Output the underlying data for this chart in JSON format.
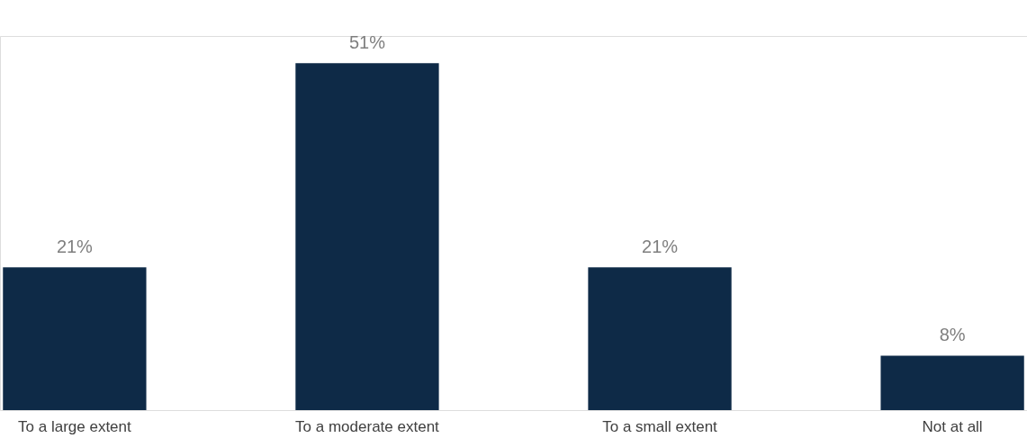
{
  "chart_data": {
    "type": "bar",
    "categories": [
      "To a large extent",
      "To a moderate extent",
      "To a small extent",
      "Not at all"
    ],
    "values": [
      21,
      51,
      21,
      8
    ],
    "value_labels": [
      "21%",
      "51%",
      "21%",
      "8%"
    ],
    "color": "#0e2a47",
    "grid": false
  }
}
